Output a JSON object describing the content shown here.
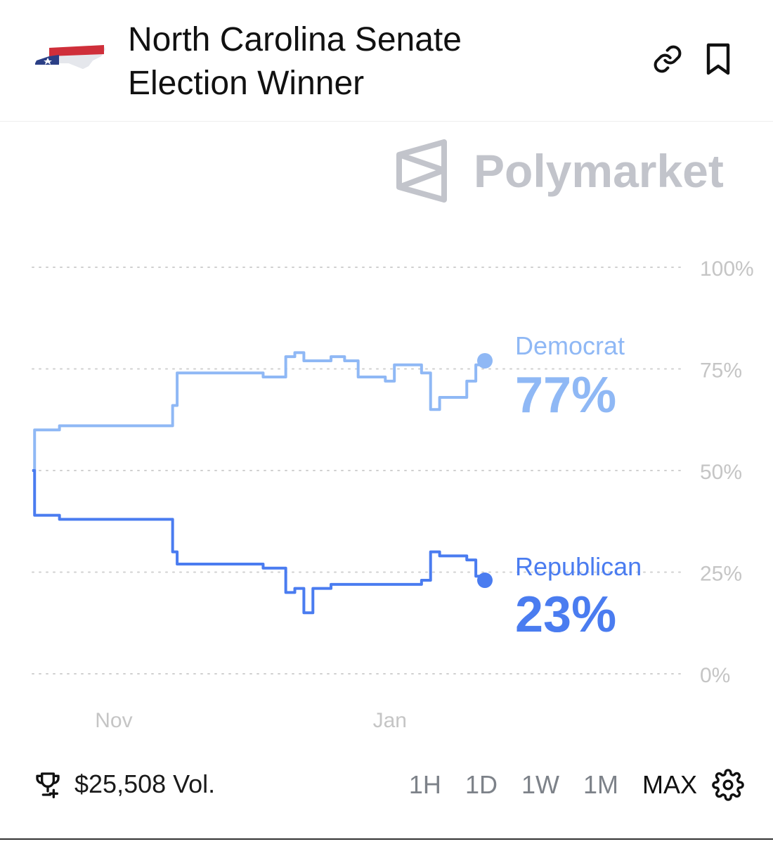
{
  "header": {
    "title_line1": "North Carolina Senate",
    "title_line2": "Election Winner"
  },
  "brand": {
    "name": "Polymarket"
  },
  "icons": {
    "flag": "north-carolina-flag-icon",
    "link": "link-icon",
    "bookmark": "bookmark-icon",
    "trophy": "trophy-icon",
    "settings": "gear-icon"
  },
  "colors": {
    "democrat": "#8fb8f5",
    "republican": "#4a7cf0",
    "grid": "#d0d0d0",
    "axis_text": "#c5c5c5"
  },
  "chart_data": {
    "type": "line",
    "ylim": [
      0,
      100
    ],
    "y_ticks": [
      "100%",
      "75%",
      "50%",
      "25%",
      "0%"
    ],
    "x_ticks": [
      {
        "label": "Nov",
        "t": 0.18
      },
      {
        "label": "Jan",
        "t": 0.79
      }
    ],
    "grid": true,
    "x": [
      0,
      0.005,
      0.02,
      0.06,
      0.3,
      0.31,
      0.32,
      0.5,
      0.51,
      0.55,
      0.56,
      0.58,
      0.6,
      0.62,
      0.66,
      0.69,
      0.72,
      0.74,
      0.78,
      0.8,
      0.82,
      0.86,
      0.88,
      0.9,
      0.905,
      0.92,
      0.95,
      0.96,
      0.98,
      1.0
    ],
    "series": [
      {
        "name": "Democrat",
        "label": "Democrat",
        "value_label": "77%",
        "values": [
          50,
          60,
          60,
          61,
          61,
          66,
          74,
          74,
          73,
          73,
          78,
          79,
          77,
          77,
          78,
          77,
          73,
          73,
          72,
          76,
          76,
          74,
          65,
          68,
          68,
          68,
          68,
          72,
          76,
          77
        ]
      },
      {
        "name": "Republican",
        "label": "Republican",
        "value_label": "23%",
        "values": [
          50,
          39,
          39,
          38,
          38,
          30,
          27,
          27,
          26,
          26,
          20,
          21,
          15,
          21,
          22,
          22,
          22,
          22,
          22,
          22,
          22,
          23,
          30,
          29,
          29,
          29,
          29,
          28,
          24,
          23
        ]
      }
    ]
  },
  "footer": {
    "volume": "$25,508 Vol.",
    "ranges": [
      "1H",
      "1D",
      "1W",
      "1M",
      "MAX"
    ],
    "active_range": "MAX"
  }
}
